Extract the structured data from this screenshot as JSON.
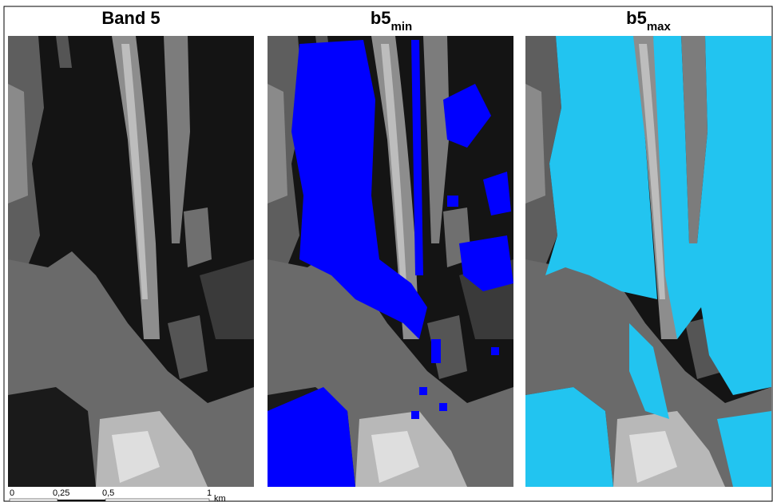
{
  "panels": [
    {
      "title": "Band 5"
    },
    {
      "title": "b5",
      "subscript": "min"
    },
    {
      "title": "b5",
      "subscript": "max"
    }
  ],
  "scale_bar": {
    "ticks": [
      "0",
      "0,25",
      "0,5",
      "1"
    ],
    "unit": "km"
  }
}
